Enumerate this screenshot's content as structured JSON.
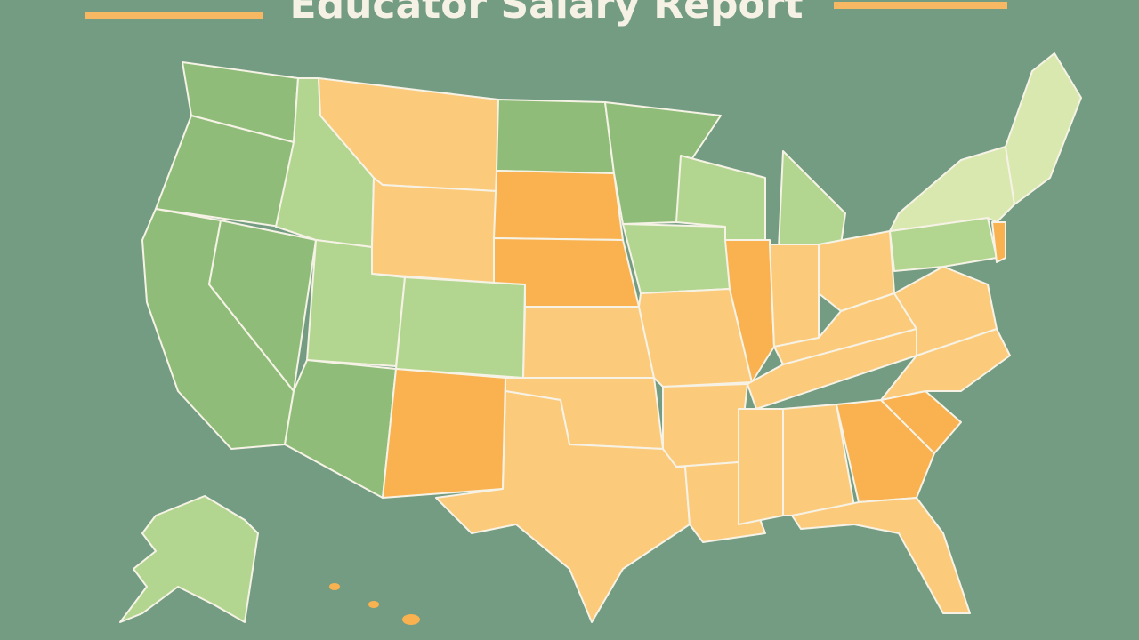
{
  "header": {
    "title": "Educator Salary Report"
  }
}
